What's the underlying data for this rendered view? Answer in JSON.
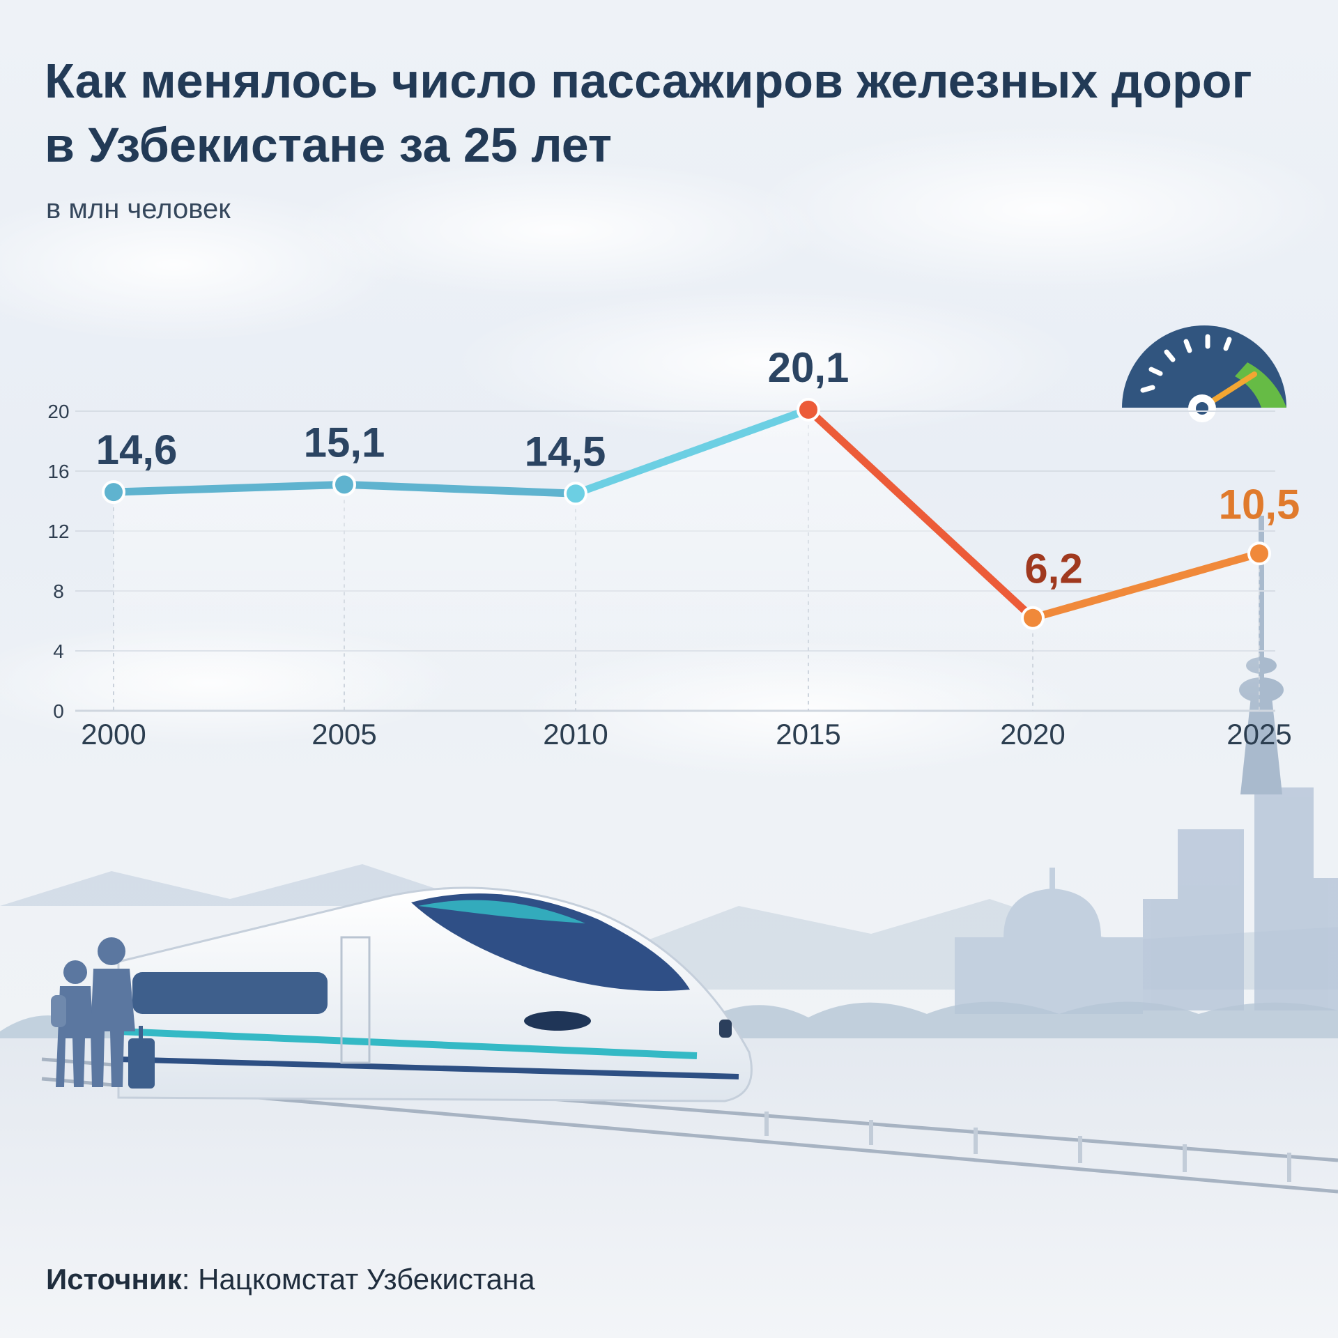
{
  "title": "Как менялось число пассажиров железных дорог в Узбекистане за 25 лет",
  "subtitle": "в млн человек",
  "source": {
    "label": "Источник",
    "separator": ": ",
    "text": "Нацкомстат Узбекистана"
  },
  "colors": {
    "title": "#223a56",
    "grid": "#d7dde5",
    "axis_text": "#2c3e50",
    "label_default": "#2b4462",
    "label_2020": "#a0391f",
    "label_2025": "#e07a2c",
    "line_blue": "#5fb3cf",
    "line_light_blue": "#6ccfe3",
    "line_red": "#ec5b38",
    "line_orange": "#f0893a"
  },
  "chart_data": {
    "type": "line",
    "x": [
      "2000",
      "2005",
      "2010",
      "2015",
      "2020",
      "2025"
    ],
    "series": [
      {
        "values": [
          14.6,
          15.1,
          14.5,
          20.1,
          6.2,
          10.5
        ]
      }
    ],
    "data_labels": [
      "14,6",
      "15,1",
      "14,5",
      "20,1",
      "6,2",
      "10,5"
    ],
    "y_ticks": [
      "0",
      "4",
      "8",
      "12",
      "16",
      "20"
    ],
    "ylim": [
      0,
      20
    ],
    "grid": true,
    "xlabel": "",
    "ylabel": ""
  },
  "decor_icons": [
    "speedometer-icon",
    "train-icon",
    "travelers-icon",
    "skyline-icon",
    "tv-tower-icon",
    "mosque-dome-icon"
  ]
}
